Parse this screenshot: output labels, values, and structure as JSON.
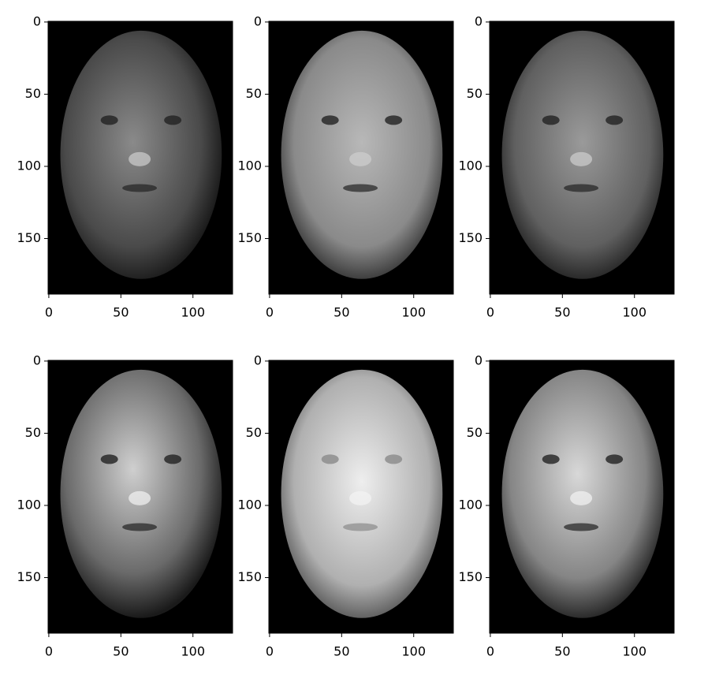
{
  "chart_data": [
    {
      "type": "image",
      "colormap": "gray",
      "xlim": [
        -0.5,
        127.5
      ],
      "ylim": [
        188.5,
        -0.5
      ],
      "xticks": [
        0,
        50,
        100
      ],
      "yticks": [
        0,
        50,
        100,
        150
      ]
    },
    {
      "type": "image",
      "colormap": "gray",
      "xlim": [
        -0.5,
        127.5
      ],
      "ylim": [
        188.5,
        -0.5
      ],
      "xticks": [
        0,
        50,
        100
      ],
      "yticks": [
        0,
        50,
        100,
        150
      ]
    },
    {
      "type": "image",
      "colormap": "gray",
      "xlim": [
        -0.5,
        127.5
      ],
      "ylim": [
        188.5,
        -0.5
      ],
      "xticks": [
        0,
        50,
        100
      ],
      "yticks": [
        0,
        50,
        100,
        150
      ]
    },
    {
      "type": "image",
      "colormap": "gray",
      "xlim": [
        -0.5,
        127.5
      ],
      "ylim": [
        188.5,
        -0.5
      ],
      "xticks": [
        0,
        50,
        100
      ],
      "yticks": [
        0,
        50,
        100,
        150
      ]
    },
    {
      "type": "image",
      "colormap": "gray",
      "xlim": [
        -0.5,
        127.5
      ],
      "ylim": [
        188.5,
        -0.5
      ],
      "xticks": [
        0,
        50,
        100
      ],
      "yticks": [
        0,
        50,
        100,
        150
      ]
    },
    {
      "type": "image",
      "colormap": "gray",
      "xlim": [
        -0.5,
        127.5
      ],
      "ylim": [
        188.5,
        -0.5
      ],
      "xticks": [
        0,
        50,
        100
      ],
      "yticks": [
        0,
        50,
        100,
        150
      ]
    }
  ]
}
